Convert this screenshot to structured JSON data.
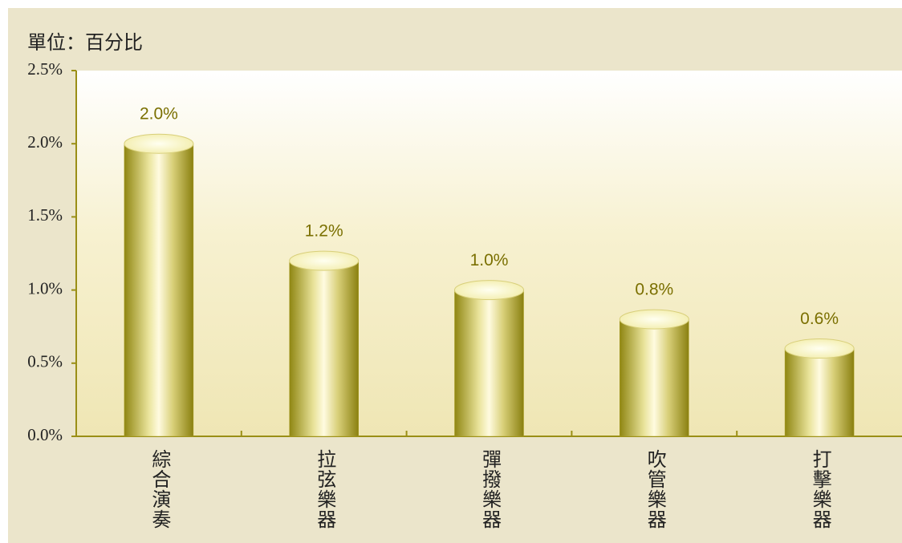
{
  "chart_data": {
    "type": "bar",
    "title": "單位：百分比",
    "categories": [
      "綜合演奏",
      "拉弦樂器",
      "彈撥樂器",
      "吹管樂器",
      "打擊樂器"
    ],
    "values": [
      2.0,
      1.2,
      1.0,
      0.8,
      0.6
    ],
    "value_labels": [
      "2.0%",
      "1.2%",
      "1.0%",
      "0.8%",
      "0.6%"
    ],
    "color": "#a89d22",
    "ylim": [
      0,
      2.5
    ],
    "yticks": [
      {
        "value": 0,
        "label": "0.0%"
      },
      {
        "value": 0.5,
        "label": "0.5%"
      },
      {
        "value": 1,
        "label": "1.0%"
      },
      {
        "value": 1.5,
        "label": "1.5%"
      },
      {
        "value": 2,
        "label": "2.0%"
      },
      {
        "value": 2.5,
        "label": "2.5%"
      }
    ],
    "grid": false
  }
}
